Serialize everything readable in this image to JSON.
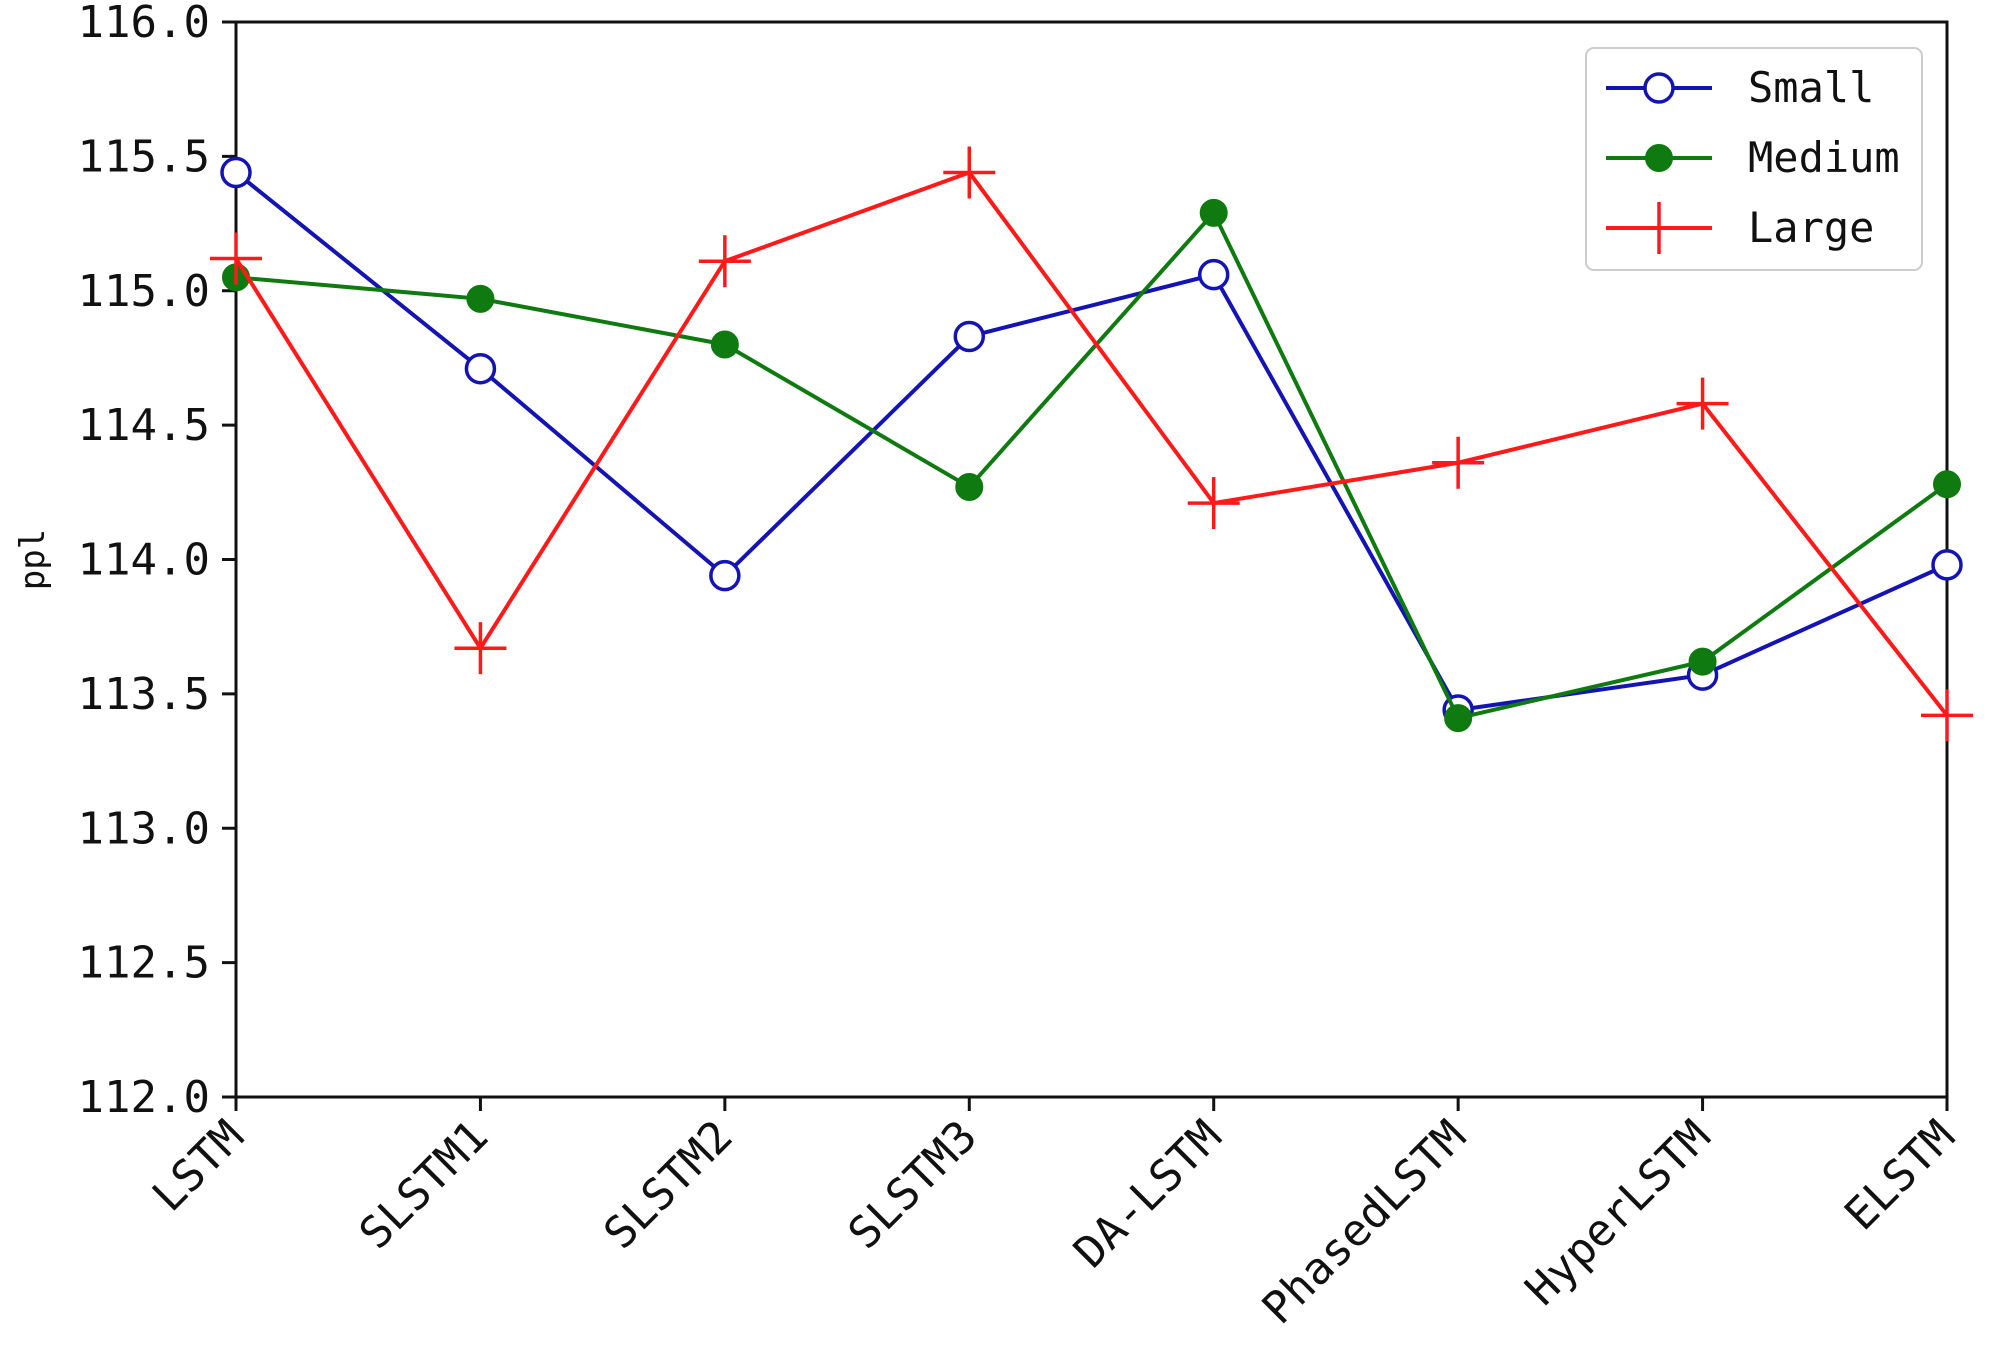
{
  "chart_data": {
    "type": "line",
    "title": "",
    "xlabel": "",
    "ylabel": "ppl",
    "categories": [
      "LSTM",
      "SLSTM1",
      "SLSTM2",
      "SLSTM3",
      "DA-LSTM",
      "PhasedLSTM",
      "HyperLSTM",
      "ELSTM"
    ],
    "ylim": [
      112.0,
      116.0
    ],
    "yticks": [
      "112.0",
      "112.5",
      "113.0",
      "113.5",
      "114.0",
      "114.5",
      "115.0",
      "115.5",
      "116.0"
    ],
    "grid": false,
    "legend_position": "top-right",
    "series": [
      {
        "name": "Small",
        "color": "#1414b4",
        "marker": "open-circle",
        "values": [
          115.44,
          114.71,
          113.94,
          114.83,
          115.06,
          113.44,
          113.57,
          113.98
        ]
      },
      {
        "name": "Medium",
        "color": "#0f7a0f",
        "marker": "filled-circle",
        "values": [
          115.05,
          114.97,
          114.8,
          114.27,
          115.29,
          113.41,
          113.62,
          114.28
        ]
      },
      {
        "name": "Large",
        "color": "#ff1a1a",
        "marker": "plus",
        "values": [
          115.12,
          113.67,
          115.11,
          115.44,
          114.21,
          114.36,
          114.58,
          113.42
        ]
      }
    ]
  }
}
